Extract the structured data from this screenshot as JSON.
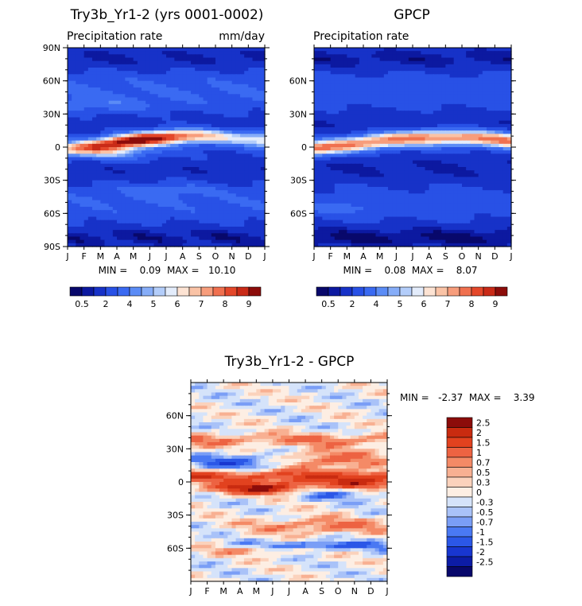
{
  "colors": {
    "precip_scale": [
      "#08086b",
      "#0c19a0",
      "#1732c8",
      "#2851e6",
      "#3a6af2",
      "#5b8cf6",
      "#86adf8",
      "#b3cdfa",
      "#e3ecfb",
      "#fde3d3",
      "#fac3a6",
      "#f79d7c",
      "#f0704f",
      "#e4472a",
      "#c92a17",
      "#8c0c0a"
    ],
    "diff_scale": [
      "#08086b",
      "#0c1ca6",
      "#1836d0",
      "#2b57e7",
      "#4a79f3",
      "#7a9ef6",
      "#a9c2f8",
      "#d5e3fa",
      "#fdeee3",
      "#fbd2bc",
      "#f8b092",
      "#f48a66",
      "#ed6342",
      "#e2421f",
      "#c92b10",
      "#8c0c0a"
    ]
  },
  "chart_data": [
    {
      "type": "heatmap",
      "title": "Try3b_Yr1-2 (yrs 0001-0002)",
      "subtitle_left": "Precipitation rate",
      "subtitle_right": "mm/day",
      "x_ticks": [
        "J",
        "F",
        "M",
        "A",
        "M",
        "J",
        "J",
        "A",
        "S",
        "O",
        "N",
        "D",
        "J"
      ],
      "y_ticks": [
        "90N",
        "60N",
        "30N",
        "0",
        "30S",
        "60S",
        "90S"
      ],
      "ylim": [
        -90,
        90
      ],
      "stats_text": "MIN =    0.09  MAX =   10.10",
      "colorbar_labels": [
        "0.5",
        "2",
        "4",
        "5",
        "6",
        "7",
        "8",
        "9"
      ],
      "colorbar_levels": [
        0.5,
        1,
        2,
        3,
        4,
        4.5,
        5,
        5.5,
        6,
        6.5,
        7,
        7.5,
        8,
        8.5,
        9
      ],
      "min": 0.09,
      "max": 10.1
    },
    {
      "type": "heatmap",
      "title": "GPCP",
      "subtitle_left": "Precipitation rate",
      "x_ticks": [
        "J",
        "F",
        "M",
        "A",
        "M",
        "J",
        "J",
        "A",
        "S",
        "O",
        "N",
        "D",
        "J"
      ],
      "y_ticks": [
        "60N",
        "30N",
        "0",
        "30S",
        "60S"
      ],
      "ylim": [
        -90,
        90
      ],
      "stats_text": "MIN =    0.08  MAX =    8.07",
      "colorbar_labels": [
        "0.5",
        "2",
        "4",
        "5",
        "6",
        "7",
        "8",
        "9"
      ],
      "colorbar_levels": [
        0.5,
        1,
        2,
        3,
        4,
        4.5,
        5,
        5.5,
        6,
        6.5,
        7,
        7.5,
        8,
        8.5,
        9
      ],
      "min": 0.08,
      "max": 8.07
    },
    {
      "type": "heatmap",
      "title": "Try3b_Yr1-2 - GPCP",
      "x_ticks": [
        "J",
        "F",
        "M",
        "A",
        "M",
        "J",
        "J",
        "A",
        "S",
        "O",
        "N",
        "D",
        "J"
      ],
      "y_ticks": [
        "60N",
        "30N",
        "0",
        "30S",
        "60S"
      ],
      "ylim": [
        -90,
        90
      ],
      "stats_text": "MIN =   -2.37  MAX =    3.39",
      "colorbar_labels": [
        "2.5",
        "2",
        "1.5",
        "1",
        "0.7",
        "0.5",
        "0.3",
        "0",
        "-0.3",
        "-0.5",
        "-0.7",
        "-1",
        "-1.5",
        "-2",
        "-2.5"
      ],
      "min": -2.37,
      "max": 3.39
    }
  ]
}
